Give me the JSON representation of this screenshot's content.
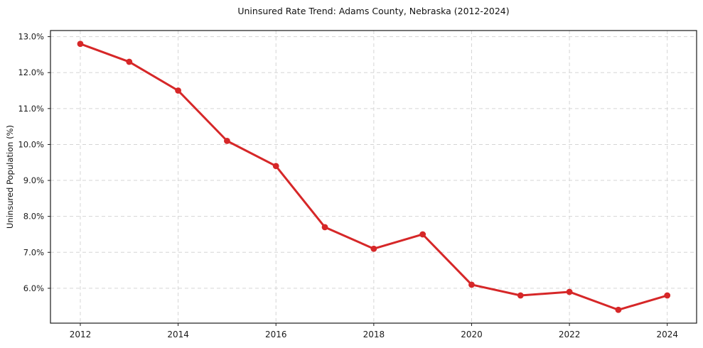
{
  "chart_data": {
    "type": "line",
    "title": "Uninsured Rate Trend: Adams County, Nebraska (2012-2024)",
    "ylabel": "Uninsured Population (%)",
    "xlabel": "",
    "x": [
      2012,
      2013,
      2014,
      2015,
      2016,
      2017,
      2018,
      2019,
      2020,
      2021,
      2022,
      2023,
      2024
    ],
    "values": [
      12.8,
      12.3,
      11.5,
      10.1,
      9.4,
      7.7,
      7.1,
      7.5,
      6.1,
      5.8,
      5.9,
      5.4,
      5.8
    ],
    "xlim": [
      2011.39,
      2024.6
    ],
    "ylim": [
      5.03,
      13.17
    ],
    "x_ticks": [
      2012,
      2014,
      2016,
      2018,
      2020,
      2022,
      2024
    ],
    "x_tick_labels": [
      "2012",
      "2014",
      "2016",
      "2018",
      "2020",
      "2022",
      "2024"
    ],
    "y_ticks": [
      6,
      7,
      8,
      9,
      10,
      11,
      12,
      13
    ],
    "y_tick_labels": [
      "6.0%",
      "7.0%",
      "8.0%",
      "9.0%",
      "10.0%",
      "11.0%",
      "12.0%",
      "13.0%"
    ],
    "grid": true,
    "legend": false,
    "line_color": "#d62728",
    "marker_color": "#d62728",
    "grid_color": "#d5d5d5",
    "axis_color": "#1a1a1a",
    "tick_label_color": "#1a1a1a"
  }
}
